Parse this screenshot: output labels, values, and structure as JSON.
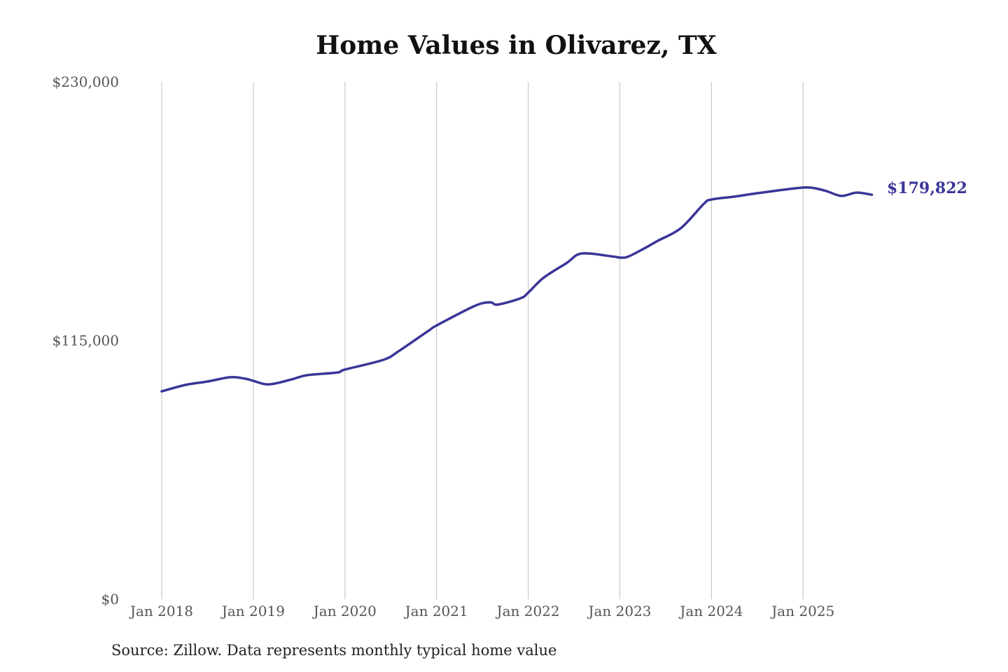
{
  "chart_data": {
    "type": "line",
    "title": "Home Values in Olivarez, TX",
    "source": "Source: Zillow. Data represents monthly typical home value",
    "xlabel": "",
    "ylabel": "",
    "ylim": [
      0,
      230000
    ],
    "y_ticks": [
      0,
      115000,
      230000
    ],
    "y_tick_labels": [
      "$0",
      "$115,000",
      "$230,000"
    ],
    "x_ticks": [
      "2018-01",
      "2019-01",
      "2020-01",
      "2021-01",
      "2022-01",
      "2023-01",
      "2024-01",
      "2025-01"
    ],
    "x_tick_labels": [
      "Jan 2018",
      "Jan 2019",
      "Jan 2020",
      "Jan 2021",
      "Jan 2022",
      "Jan 2023",
      "Jan 2024",
      "Jan 2025"
    ],
    "grid": "vertical",
    "line_color": "#3a3598",
    "end_label": "$179,822",
    "series": [
      {
        "points": [
          [
            "2018-01",
            92400
          ],
          [
            "2018-04",
            95200
          ],
          [
            "2018-07",
            96800
          ],
          [
            "2018-10",
            98700
          ],
          [
            "2018-12",
            98000
          ],
          [
            "2019-01",
            97100
          ],
          [
            "2019-03",
            95500
          ],
          [
            "2019-06",
            97700
          ],
          [
            "2019-08",
            99600
          ],
          [
            "2019-12",
            100800
          ],
          [
            "2020-01",
            102100
          ],
          [
            "2020-06",
            106400
          ],
          [
            "2020-08",
            110200
          ],
          [
            "2020-12",
            119500
          ],
          [
            "2021-01",
            121700
          ],
          [
            "2021-06",
            130400
          ],
          [
            "2021-08",
            132000
          ],
          [
            "2021-09",
            131000
          ],
          [
            "2021-12",
            133800
          ],
          [
            "2022-01",
            136300
          ],
          [
            "2022-03",
            142900
          ],
          [
            "2022-06",
            149400
          ],
          [
            "2022-08",
            153700
          ],
          [
            "2022-12",
            152400
          ],
          [
            "2023-01",
            151900
          ],
          [
            "2023-02",
            152200
          ],
          [
            "2023-04",
            155600
          ],
          [
            "2023-06",
            159400
          ],
          [
            "2023-09",
            165000
          ],
          [
            "2023-12",
            175800
          ],
          [
            "2024-01",
            177700
          ],
          [
            "2024-04",
            179000
          ],
          [
            "2024-07",
            180500
          ],
          [
            "2024-12",
            182700
          ],
          [
            "2025-02",
            183000
          ],
          [
            "2025-04",
            181500
          ],
          [
            "2025-06",
            179300
          ],
          [
            "2025-08",
            180800
          ],
          [
            "2025-10",
            179822
          ]
        ]
      }
    ]
  }
}
